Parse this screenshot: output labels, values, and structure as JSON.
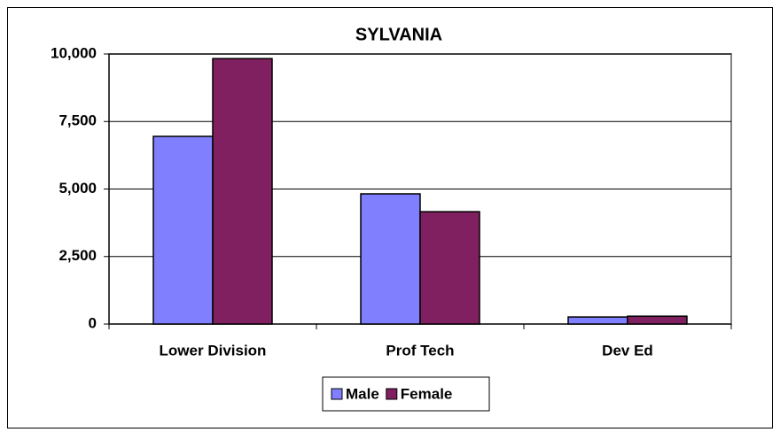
{
  "chart_data": {
    "type": "bar",
    "title": "SYLVANIA",
    "categories": [
      "Lower Division",
      "Prof Tech",
      "Dev Ed"
    ],
    "series": [
      {
        "name": "Male",
        "color": "#8080ff",
        "values": [
          6950,
          4820,
          260
        ]
      },
      {
        "name": "Female",
        "color": "#802060",
        "values": [
          9830,
          4160,
          290
        ]
      }
    ],
    "ylim": [
      0,
      10000
    ],
    "yticks": [
      0,
      {
        "value": 2500,
        "label": "2,500"
      },
      {
        "value": 5000,
        "label": "5,000"
      },
      {
        "value": 7500,
        "label": "7,500"
      },
      {
        "value": 10000,
        "label": "10,000"
      }
    ],
    "grid": true,
    "legend": "bottom"
  }
}
